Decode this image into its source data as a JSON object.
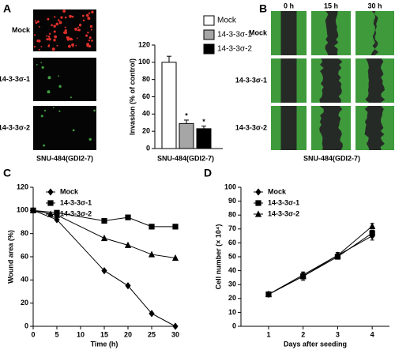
{
  "panels": {
    "labels": [
      "A",
      "B",
      "C",
      "D"
    ]
  },
  "invasion_images": {
    "rows": [
      "Mock",
      "14-3-3σ-1",
      "14-3-3σ-2"
    ],
    "caption": "SNU-484(GDI2-7)"
  },
  "wound_images": {
    "columns": [
      "0 h",
      "15 h",
      "30 h"
    ],
    "rows": [
      "Mock",
      "14-3-3σ-1",
      "14-3-3σ-2"
    ],
    "caption": "SNU-484(GDI2-7)"
  },
  "chart_data": [
    {
      "type": "bar",
      "categories": [
        "Mock",
        "14-3-3σ-1",
        "14-3-3σ-2"
      ],
      "values": [
        100,
        29,
        23
      ],
      "errors": [
        7,
        4,
        3
      ],
      "colors": [
        "#ffffff",
        "#a6a6a6",
        "#000000"
      ],
      "significance": [
        null,
        "*",
        "*"
      ],
      "ylabel": "Invasion (% of control)",
      "xlabel": "SNU-484(GDI2-7)",
      "ylim": [
        0,
        120
      ],
      "yticks": [
        0,
        20,
        40,
        60,
        80,
        100,
        120
      ],
      "legend": "upper right"
    },
    {
      "type": "line",
      "x": [
        0,
        5,
        15,
        20,
        25,
        30
      ],
      "xlim": [
        0,
        30
      ],
      "xticks": [
        0,
        5,
        10,
        15,
        20,
        25,
        30
      ],
      "ylim": [
        0,
        120
      ],
      "yticks": [
        0,
        20,
        40,
        60,
        80,
        100,
        120
      ],
      "xlabel": "Time (h)",
      "ylabel": "Wound area (%)",
      "legend": "upper left",
      "series": [
        {
          "name": "Mock",
          "color": "#000000",
          "marker": "diamond",
          "values": [
            100,
            92,
            48,
            35,
            11,
            0
          ]
        },
        {
          "name": "14-3-3σ-1",
          "color": "#000000",
          "marker": "square",
          "values": [
            100,
            98,
            91,
            94,
            86,
            86
          ]
        },
        {
          "name": "14-3-3σ-2",
          "color": "#000000",
          "marker": "triangle",
          "values": [
            100,
            96,
            76,
            70,
            62,
            59
          ]
        }
      ]
    },
    {
      "type": "line",
      "x": [
        1,
        2,
        3,
        4
      ],
      "xlim": [
        0.2,
        4.5
      ],
      "xticks": [
        1,
        2,
        3,
        4
      ],
      "ylim": [
        0,
        100
      ],
      "yticks": [
        0,
        10,
        20,
        30,
        40,
        50,
        60,
        70,
        80,
        90,
        100
      ],
      "xlabel": "Days after seeding",
      "ylabel": "Cell number (× 10⁴)",
      "legend": "upper left",
      "series": [
        {
          "name": "Mock",
          "color": "#000000",
          "marker": "diamond",
          "values": [
            23,
            37,
            51,
            65
          ],
          "errors": [
            1,
            2,
            2,
            3
          ]
        },
        {
          "name": "14-3-3σ-1",
          "color": "#000000",
          "marker": "square",
          "values": [
            23,
            36,
            50,
            67
          ],
          "errors": [
            1,
            2,
            1,
            2
          ]
        },
        {
          "name": "14-3-3σ-2",
          "color": "#000000",
          "marker": "triangle",
          "values": [
            23,
            36,
            51,
            72
          ],
          "errors": [
            1,
            3,
            2,
            2
          ]
        }
      ]
    }
  ]
}
